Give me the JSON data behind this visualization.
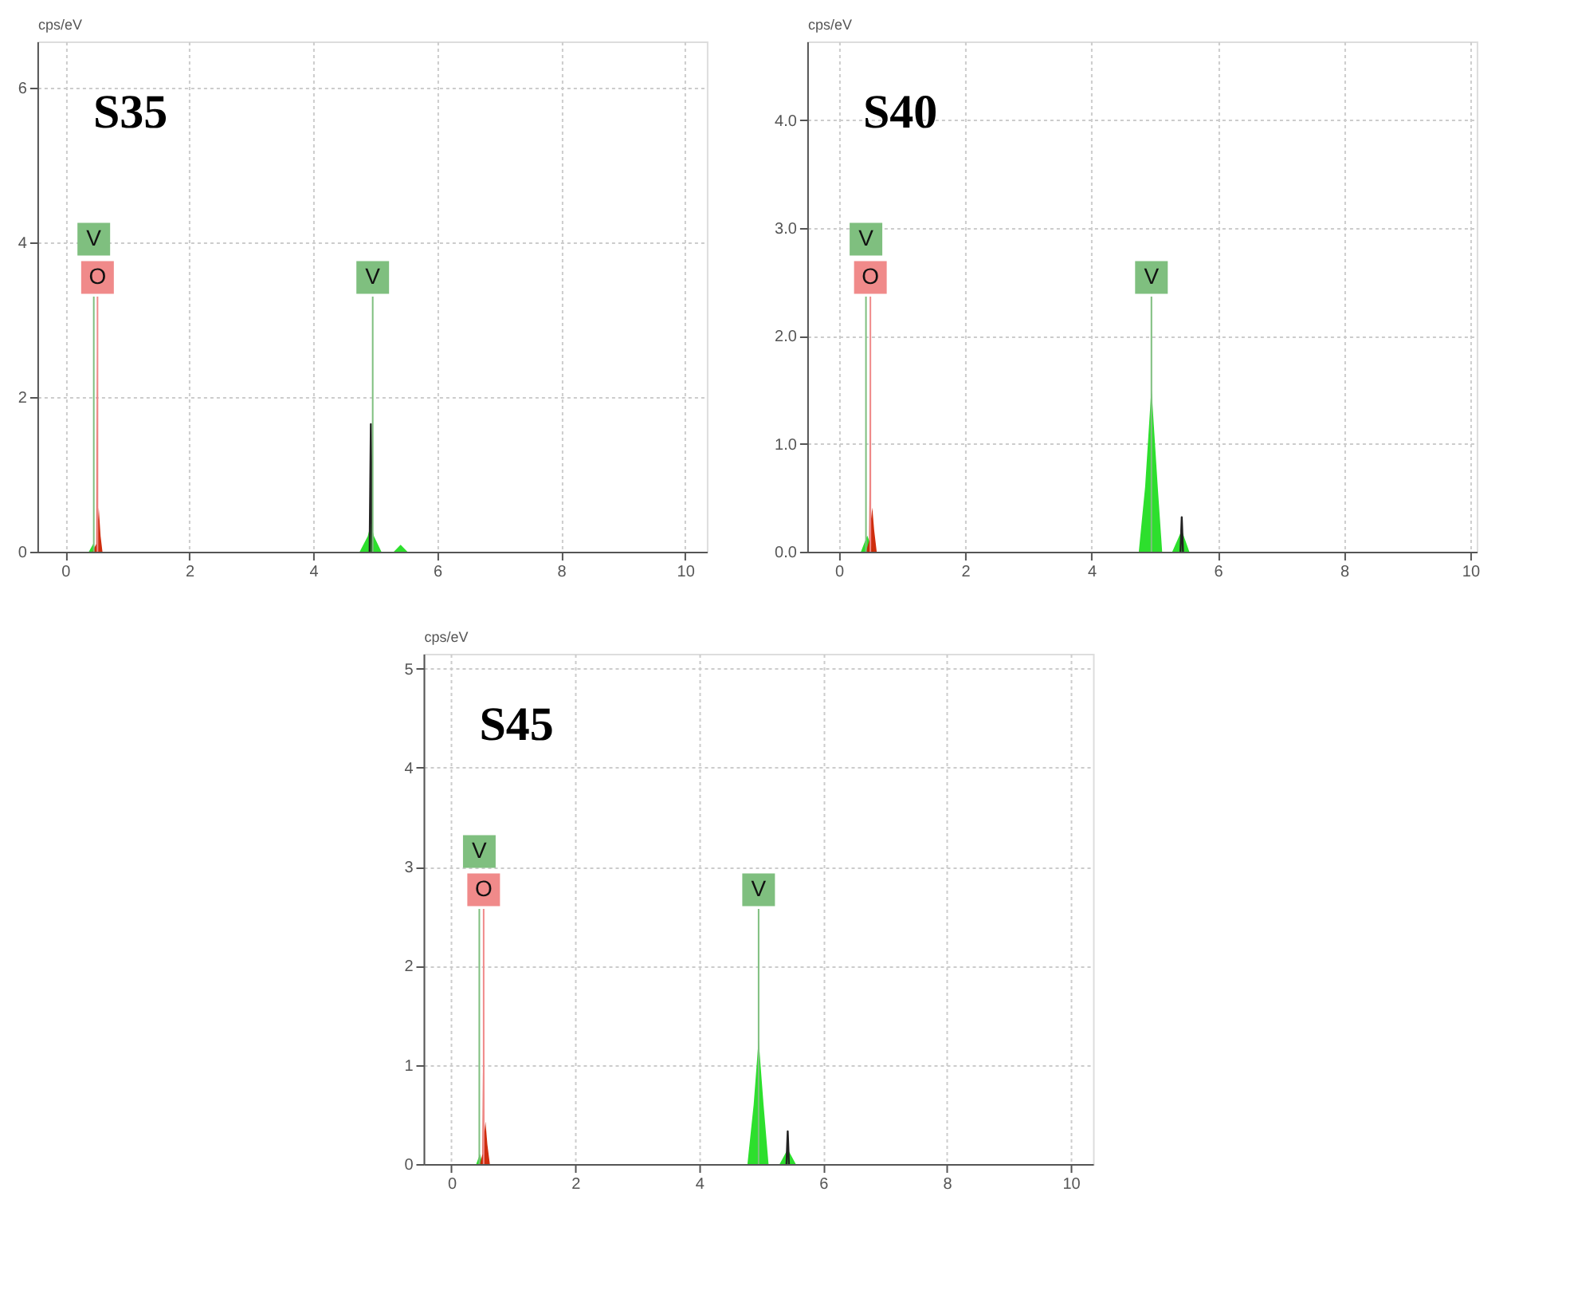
{
  "chart_data": [
    {
      "type": "area",
      "title": "S35",
      "ylabel": "cps/eV",
      "xlim": [
        -0.45,
        10.35
      ],
      "ylim": [
        0,
        6.6
      ],
      "xticks": [
        0,
        2,
        4,
        6,
        8,
        10
      ],
      "yticks": [
        0,
        2,
        4,
        6
      ],
      "grid": true,
      "series": [
        {
          "type": "area",
          "color": "#22dd22",
          "x": [
            0.38,
            0.45,
            0.5,
            4.75,
            4.88,
            4.93,
            4.98,
            5.1,
            5.3,
            5.41,
            5.52
          ],
          "values": [
            0,
            0.1,
            0,
            0,
            0.2,
            0.36,
            0.2,
            0,
            0,
            0.09,
            0
          ]
        },
        {
          "type": "area",
          "color": "#cc2200",
          "x": [
            0.44,
            0.5,
            0.51,
            0.52,
            0.54,
            0.57,
            0.6
          ],
          "values": [
            0,
            0.1,
            2.64,
            0.3,
            0.57,
            0.2,
            0
          ]
        },
        {
          "type": "line",
          "color": "#222222",
          "x": [
            4.91,
            4.93,
            4.95
          ],
          "values": [
            0,
            1.65,
            0
          ]
        }
      ],
      "ref_lines": [
        {
          "axis": "x",
          "value": 0.46,
          "label": "V",
          "color": "#7fbf7f"
        },
        {
          "axis": "x",
          "value": 0.52,
          "label": "O",
          "color": "#f08a8a"
        },
        {
          "axis": "x",
          "value": 4.96,
          "label": "V",
          "color": "#7fbf7f"
        }
      ]
    },
    {
      "type": "area",
      "title": "S40",
      "ylabel": "cps/eV",
      "xlim": [
        -0.5,
        10.1
      ],
      "ylim": [
        0,
        4.73
      ],
      "xticks": [
        0,
        2,
        4,
        6,
        8,
        10
      ],
      "yticks": [
        {
          "value": 0,
          "label": "0.0"
        },
        {
          "value": 1,
          "label": "1.0"
        },
        {
          "value": 2,
          "label": "2.0"
        },
        {
          "value": 3,
          "label": "3.0"
        },
        {
          "value": 4,
          "label": "4.0"
        }
      ],
      "grid": true,
      "series": [
        {
          "type": "area",
          "color": "#22dd22",
          "x": [
            0.35,
            0.45,
            0.55,
            4.75,
            4.85,
            4.95,
            5.05,
            5.12,
            5.28,
            5.43,
            5.55
          ],
          "values": [
            0,
            0.15,
            0,
            0,
            0.6,
            1.52,
            0.6,
            0,
            0,
            0.2,
            0
          ]
        },
        {
          "type": "area",
          "color": "#cc2200",
          "x": [
            0.43,
            0.48,
            0.5,
            0.51,
            0.53,
            0.56,
            0.6
          ],
          "values": [
            0,
            0.1,
            1.88,
            0.3,
            0.41,
            0.2,
            0
          ]
        },
        {
          "type": "line",
          "color": "#222222",
          "x": [
            5.41,
            5.43,
            5.45
          ],
          "values": [
            0,
            0.32,
            0
          ]
        }
      ],
      "ref_lines": [
        {
          "axis": "x",
          "value": 0.43,
          "label": "V",
          "color": "#7fbf7f"
        },
        {
          "axis": "x",
          "value": 0.5,
          "label": "O",
          "color": "#f08a8a"
        },
        {
          "axis": "x",
          "value": 4.95,
          "label": "V",
          "color": "#7fbf7f"
        }
      ]
    },
    {
      "type": "area",
      "title": "S45",
      "ylabel": "cps/eV",
      "xlim": [
        -0.45,
        10.36
      ],
      "ylim": [
        0,
        5.15
      ],
      "xticks": [
        0,
        2,
        4,
        6,
        8,
        10
      ],
      "yticks": [
        0,
        1,
        2,
        3,
        4,
        5
      ],
      "grid": true,
      "series": [
        {
          "type": "area",
          "color": "#22dd22",
          "x": [
            0.4,
            0.46,
            0.5,
            4.78,
            4.88,
            4.96,
            5.04,
            5.12,
            5.3,
            5.43,
            5.56
          ],
          "values": [
            0,
            0.1,
            0,
            0,
            0.6,
            1.26,
            0.6,
            0,
            0,
            0.15,
            0
          ]
        },
        {
          "type": "area",
          "color": "#cc2200",
          "x": [
            0.46,
            0.5,
            0.52,
            0.53,
            0.55,
            0.58,
            0.62
          ],
          "values": [
            0,
            0.1,
            2.04,
            0.3,
            0.43,
            0.2,
            0
          ]
        },
        {
          "type": "line",
          "color": "#222222",
          "x": [
            5.41,
            5.43,
            5.45
          ],
          "values": [
            0,
            0.33,
            0
          ]
        }
      ],
      "ref_lines": [
        {
          "axis": "x",
          "value": 0.45,
          "label": "V",
          "color": "#7fbf7f"
        },
        {
          "axis": "x",
          "value": 0.52,
          "label": "O",
          "color": "#f08a8a"
        },
        {
          "axis": "x",
          "value": 4.96,
          "label": "V",
          "color": "#7fbf7f"
        }
      ]
    }
  ]
}
